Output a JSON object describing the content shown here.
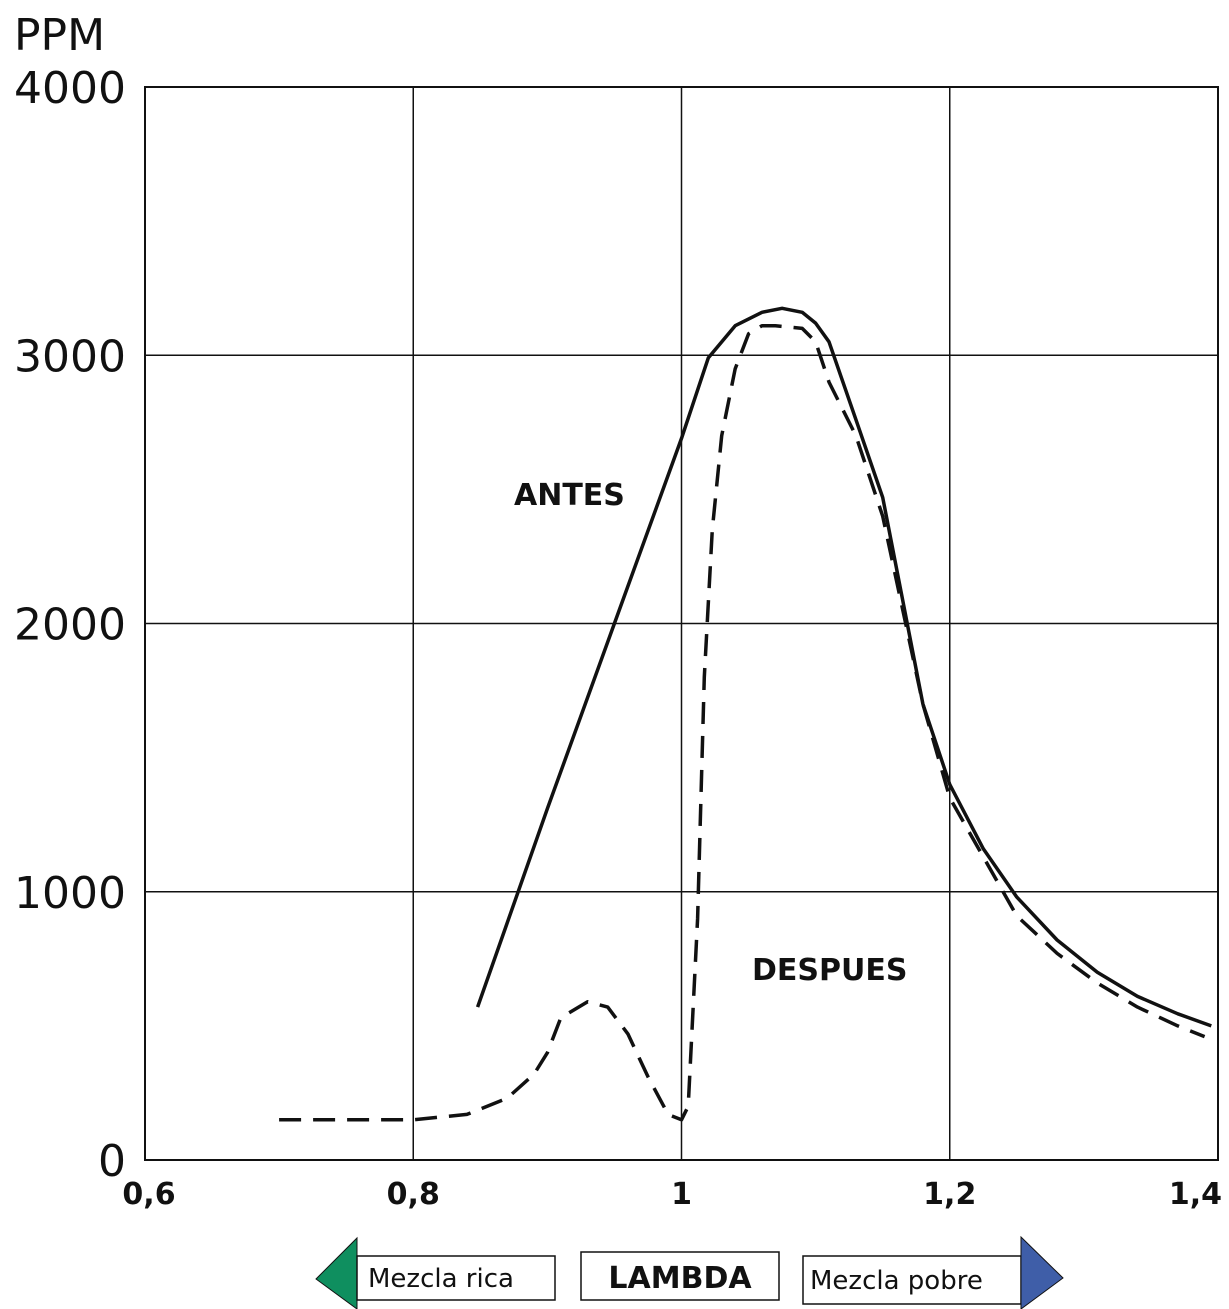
{
  "chart_data": {
    "type": "line",
    "ylabel": "PPM",
    "xlabel": "LAMBDA",
    "xlim": [
      0.6,
      1.4
    ],
    "ylim": [
      0,
      4000
    ],
    "x_ticks": [
      "0,6",
      "0,8",
      "1",
      "1,2",
      "1,4"
    ],
    "y_ticks": [
      "0",
      "1000",
      "2000",
      "3000",
      "4000"
    ],
    "grid": true,
    "series": [
      {
        "name": "ANTES",
        "style": "solid",
        "x": [
          0.848,
          0.9,
          0.95,
          1.0,
          1.02,
          1.04,
          1.06,
          1.075,
          1.09,
          1.1,
          1.11,
          1.13,
          1.15,
          1.18,
          1.2,
          1.225,
          1.25,
          1.28,
          1.31,
          1.34,
          1.37,
          1.395
        ],
        "y": [
          570,
          1310,
          2000,
          2690,
          2990,
          3110,
          3160,
          3175,
          3160,
          3120,
          3050,
          2760,
          2470,
          1700,
          1400,
          1160,
          980,
          820,
          700,
          610,
          545,
          500
        ]
      },
      {
        "name": "DESPUES",
        "style": "dashed",
        "x": [
          0.7,
          0.75,
          0.8,
          0.84,
          0.87,
          0.89,
          0.9,
          0.91,
          0.93,
          0.945,
          0.96,
          0.975,
          0.99,
          1.0,
          1.005,
          1.012,
          1.017,
          1.023,
          1.03,
          1.04,
          1.05,
          1.06,
          1.07,
          1.09,
          1.1,
          1.11,
          1.13,
          1.15,
          1.18,
          1.2,
          1.225,
          1.25,
          1.28,
          1.31,
          1.34,
          1.37,
          1.39
        ],
        "y": [
          150,
          150,
          150,
          170,
          230,
          320,
          400,
          530,
          590,
          570,
          470,
          310,
          170,
          150,
          200,
          900,
          1800,
          2350,
          2700,
          2950,
          3080,
          3110,
          3110,
          3100,
          3050,
          2900,
          2700,
          2400,
          1700,
          1350,
          1130,
          910,
          770,
          660,
          570,
          500,
          460
        ]
      }
    ],
    "annotations": [
      "ANTES",
      "DESPUES"
    ],
    "legend": {
      "left": "Mezcla rica",
      "center": "LAMBDA",
      "right": "Mezcla pobre",
      "left_color": "#0f8f5f",
      "right_color": "#3f5ea8"
    }
  }
}
